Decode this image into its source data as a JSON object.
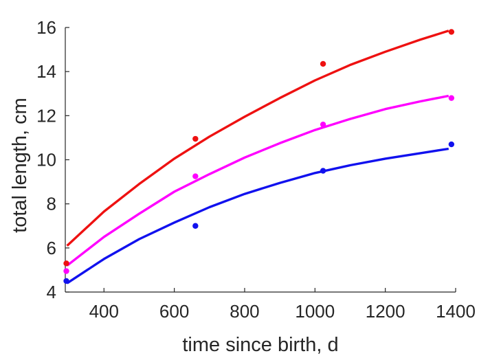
{
  "chart_data": {
    "type": "scatter",
    "title": "",
    "xlabel": "time since birth, d",
    "ylabel": "total length, cm",
    "xlim": [
      290,
      1400
    ],
    "ylim": [
      4,
      16
    ],
    "xticks": [
      400,
      600,
      800,
      1000,
      1200,
      1400
    ],
    "yticks": [
      4,
      6,
      8,
      10,
      12,
      14,
      16
    ],
    "grid": false,
    "legend": "none",
    "series": [
      {
        "color": "#ee1111",
        "points": {
          "x": [
            293,
            660,
            1023,
            1388
          ],
          "y": [
            5.3,
            10.95,
            14.35,
            15.8
          ]
        },
        "fit": {
          "x": [
            295,
            400,
            500,
            600,
            700,
            800,
            900,
            1000,
            1100,
            1200,
            1300,
            1380
          ],
          "y": [
            6.1,
            7.65,
            8.9,
            10.05,
            11.05,
            11.95,
            12.8,
            13.6,
            14.3,
            14.9,
            15.45,
            15.85
          ]
        }
      },
      {
        "color": "#ff00ff",
        "points": {
          "x": [
            293,
            660,
            1023,
            1388
          ],
          "y": [
            4.95,
            9.25,
            11.6,
            12.8
          ]
        },
        "fit": {
          "x": [
            295,
            400,
            500,
            600,
            700,
            800,
            900,
            1000,
            1100,
            1200,
            1300,
            1380
          ],
          "y": [
            5.2,
            6.5,
            7.55,
            8.55,
            9.35,
            10.1,
            10.75,
            11.35,
            11.85,
            12.3,
            12.65,
            12.9
          ]
        }
      },
      {
        "color": "#1111ee",
        "points": {
          "x": [
            293,
            660,
            1023,
            1388
          ],
          "y": [
            4.5,
            7.0,
            9.5,
            10.7
          ]
        },
        "fit": {
          "x": [
            295,
            400,
            500,
            600,
            700,
            800,
            900,
            1000,
            1100,
            1200,
            1300,
            1380
          ],
          "y": [
            4.4,
            5.5,
            6.4,
            7.15,
            7.85,
            8.45,
            8.95,
            9.4,
            9.75,
            10.05,
            10.3,
            10.5
          ]
        }
      }
    ]
  }
}
